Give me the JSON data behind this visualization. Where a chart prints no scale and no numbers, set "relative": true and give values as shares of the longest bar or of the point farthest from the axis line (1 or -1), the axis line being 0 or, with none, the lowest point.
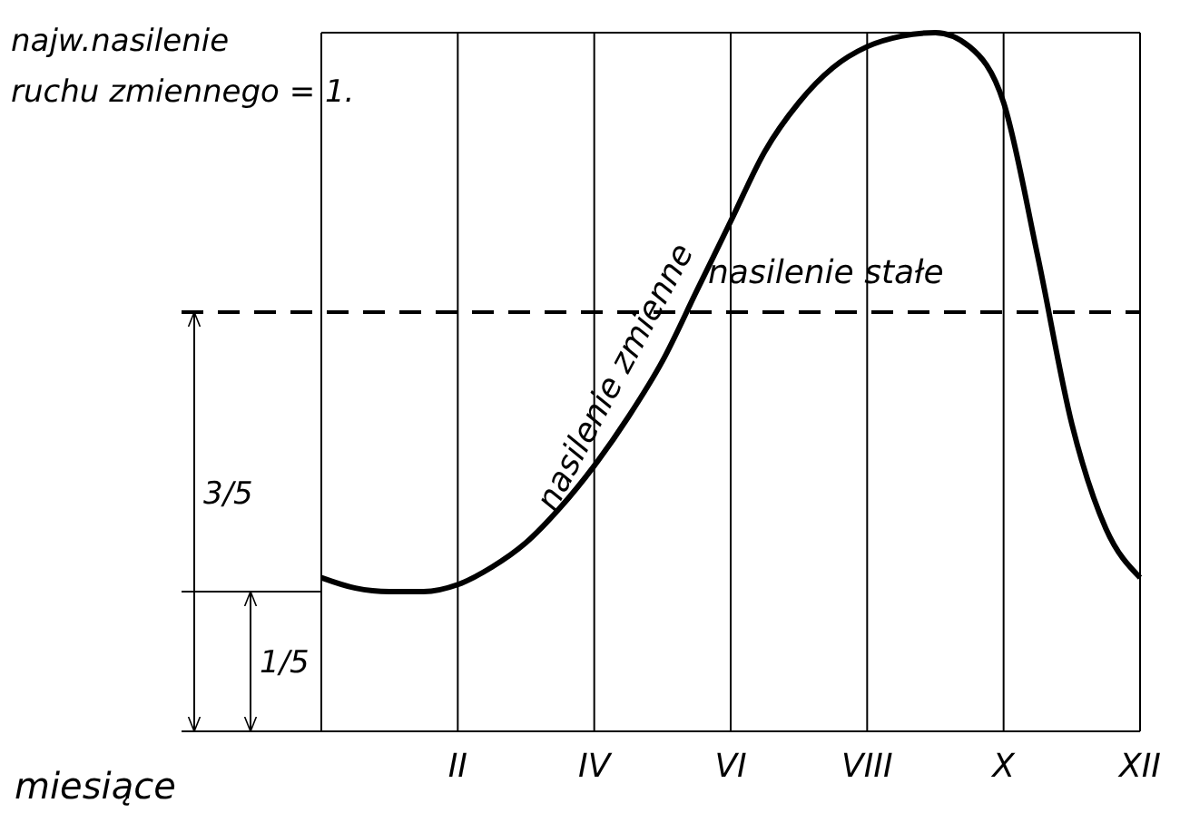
{
  "chart_data": {
    "type": "line",
    "relative": true,
    "categories": [
      null,
      null,
      null,
      null,
      "II",
      null,
      null,
      null,
      "IV",
      null,
      null,
      null,
      "VI",
      null,
      null,
      null,
      "VIII",
      null,
      null,
      null,
      "X",
      null,
      null,
      null,
      "XII"
    ],
    "xlabel": "miesiące",
    "series": [
      {
        "color": "#000000",
        "values": [
          0.22,
          0.205,
          0.2,
          0.2,
          0.21,
          0.235,
          0.27,
          0.32,
          0.38,
          0.45,
          0.53,
          0.63,
          0.73,
          0.83,
          0.9,
          0.95,
          0.98,
          0.995,
          1.0,
          0.98,
          0.9,
          0.68,
          0.44,
          0.29,
          0.22
        ]
      }
    ],
    "ref_lines": [
      {
        "axis": "y",
        "value": 0.6,
        "label": "nasilenie stałe",
        "line_style": "dashed",
        "color": "#000000"
      }
    ],
    "annotations": [
      "najw.nasilenie ruchu zmiennego = 1.",
      "nasilenie zmienne",
      "3/5",
      "1/5"
    ],
    "grid": "x",
    "marker": "none",
    "line_style": "solid"
  }
}
